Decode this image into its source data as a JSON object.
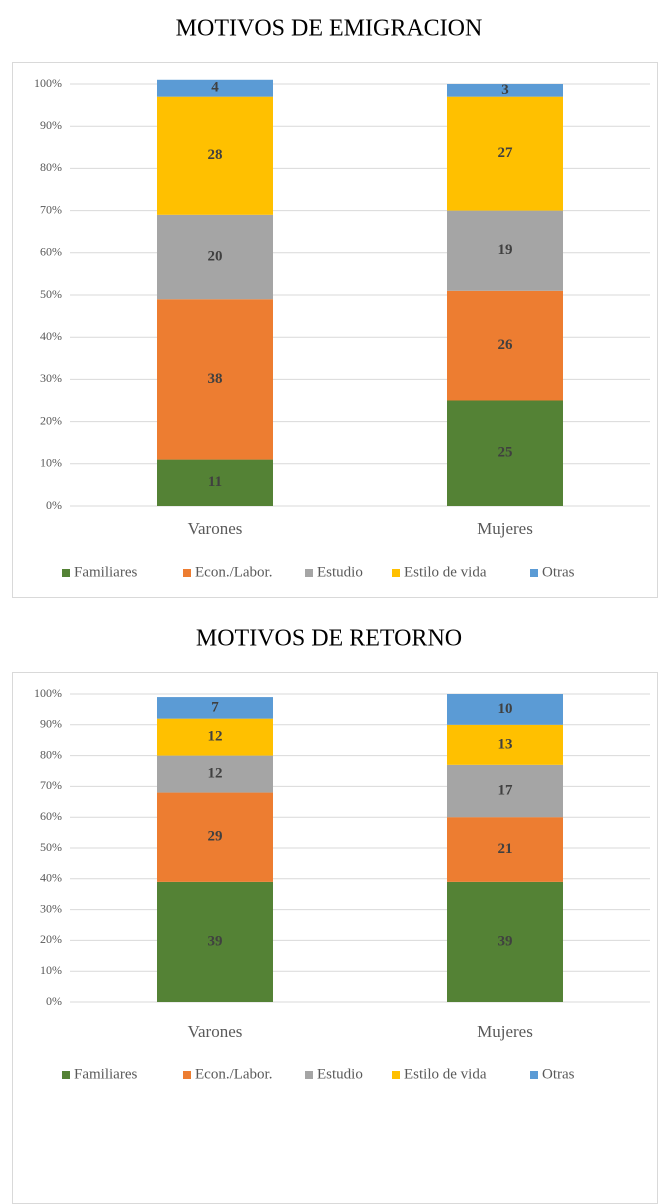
{
  "chart_data": [
    {
      "type": "bar",
      "stacked": true,
      "title": "MOTIVOS DE EMIGRACION",
      "categories": [
        "Varones",
        "Mujeres"
      ],
      "series": [
        {
          "name": "Familiares",
          "color": "#548235",
          "values": [
            11,
            25
          ]
        },
        {
          "name": "Econ./Labor.",
          "color": "#ed7d31",
          "values": [
            38,
            26
          ]
        },
        {
          "name": "Estudio",
          "color": "#a5a5a5",
          "values": [
            20,
            19
          ]
        },
        {
          "name": "Estilo de vida",
          "color": "#ffc000",
          "values": [
            28,
            27
          ]
        },
        {
          "name": "Otras",
          "color": "#5b9bd5",
          "values": [
            4,
            3
          ]
        }
      ],
      "ylim": [
        0,
        100
      ],
      "yticks": [
        {
          "value": 0,
          "label": "0%"
        },
        {
          "value": 10,
          "label": "10%"
        },
        {
          "value": 20,
          "label": "20%"
        },
        {
          "value": 30,
          "label": "30%"
        },
        {
          "value": 40,
          "label": "40%"
        },
        {
          "value": 50,
          "label": "50%"
        },
        {
          "value": 60,
          "label": "60%"
        },
        {
          "value": 70,
          "label": "70%"
        },
        {
          "value": 80,
          "label": "80%"
        },
        {
          "value": 90,
          "label": "90%"
        },
        {
          "value": 100,
          "label": "100%"
        }
      ],
      "grid": true,
      "legend": "bottom"
    },
    {
      "type": "bar",
      "stacked": true,
      "title": "MOTIVOS DE RETORNO",
      "categories": [
        "Varones",
        "Mujeres"
      ],
      "series": [
        {
          "name": "Familiares",
          "color": "#548235",
          "values": [
            39,
            39
          ]
        },
        {
          "name": "Econ./Labor.",
          "color": "#ed7d31",
          "values": [
            29,
            21
          ]
        },
        {
          "name": "Estudio",
          "color": "#a5a5a5",
          "values": [
            12,
            17
          ]
        },
        {
          "name": "Estilo de vida",
          "color": "#ffc000",
          "values": [
            12,
            13
          ]
        },
        {
          "name": "Otras",
          "color": "#5b9bd5",
          "values": [
            7,
            10
          ]
        }
      ],
      "ylim": [
        0,
        100
      ],
      "yticks": [
        {
          "value": 0,
          "label": "0%"
        },
        {
          "value": 10,
          "label": "10%"
        },
        {
          "value": 20,
          "label": "20%"
        },
        {
          "value": 30,
          "label": "30%"
        },
        {
          "value": 40,
          "label": "40%"
        },
        {
          "value": 50,
          "label": "50%"
        },
        {
          "value": 60,
          "label": "60%"
        },
        {
          "value": 70,
          "label": "70%"
        },
        {
          "value": 80,
          "label": "80%"
        },
        {
          "value": 90,
          "label": "90%"
        },
        {
          "value": 100,
          "label": "100%"
        }
      ],
      "grid": true,
      "legend": "bottom"
    }
  ]
}
